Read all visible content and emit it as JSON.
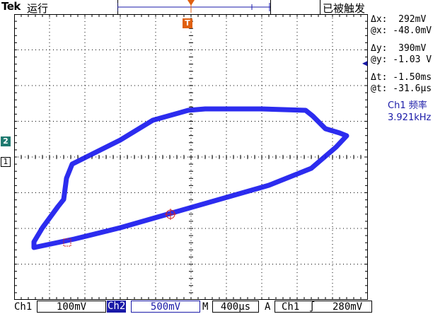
{
  "header": {
    "brand": "Tek",
    "run_state": "运行",
    "trigger_state": "已被触发"
  },
  "readouts": {
    "delta_x": "Δx:  292mV",
    "at_x": "@x: -48.0mV",
    "delta_y": "Δy:  390mV",
    "at_y": "@y: -1.03 V",
    "delta_t": "Δt: -1.50ms",
    "at_t": "@t: -31.6µs"
  },
  "measurement": {
    "label": "Ch1 频率",
    "value": "3.921kHz"
  },
  "markers": {
    "trigger": "T",
    "ch2": "2",
    "ch1": "1"
  },
  "footer": {
    "ch1_label": "Ch1",
    "ch1_scale": "100mV",
    "ch2_label": "Ch2",
    "ch2_scale": "500mV",
    "timebase_label": "M",
    "timebase": "400µs",
    "trigger_mode": "A",
    "trigger_source": "Ch1",
    "trigger_slope": "∫",
    "trigger_level": "280mV"
  },
  "colors": {
    "trace": "#1a1aee",
    "accent": "#1a1aa8",
    "trigger": "#e06010",
    "ch2_marker": "#1f7a70"
  }
}
